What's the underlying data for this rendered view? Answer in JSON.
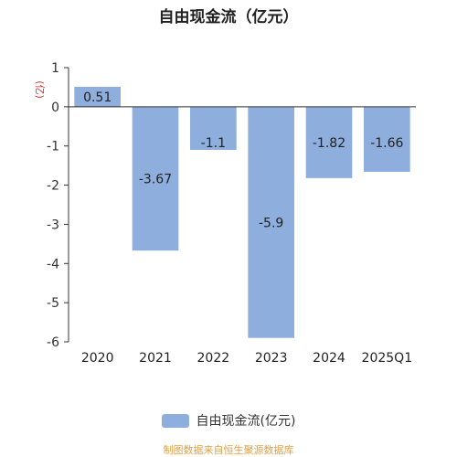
{
  "chart_data": {
    "type": "bar",
    "title": "自由现金流（亿元）",
    "ylabel": "(亿)",
    "categories": [
      "2020",
      "2021",
      "2022",
      "2023",
      "2024",
      "2025Q1"
    ],
    "series": [
      {
        "name": "自由现金流(亿元)",
        "values": [
          0.51,
          -3.67,
          -1.1,
          -5.9,
          -1.82,
          -1.66
        ]
      }
    ],
    "data_labels": [
      "0.51",
      "-3.67",
      "-1.1",
      "-5.9",
      "-1.82",
      "-1.66"
    ],
    "yticks": [
      1,
      0,
      -1,
      -2,
      -3,
      -4,
      -5,
      -6
    ],
    "ylim": [
      -6,
      1
    ],
    "grid": false,
    "legend_position": "bottom",
    "bar_color": "#8eaedd"
  },
  "source_note": "制图数据来自恒生聚源数据库"
}
